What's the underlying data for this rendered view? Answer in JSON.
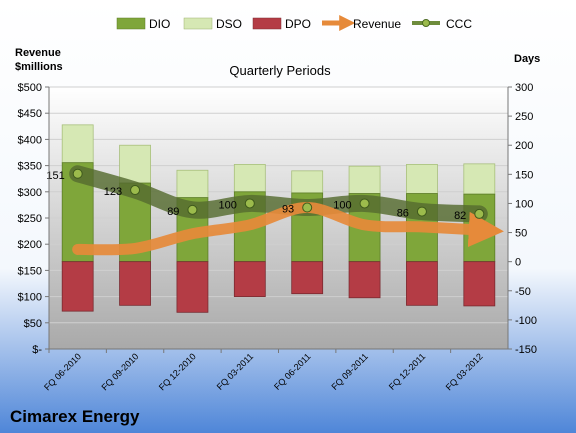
{
  "chart_data": {
    "type": "bar",
    "title": "Quarterly Periods",
    "company": "Cimarex Energy",
    "left_axis_label_line1": "Revenue",
    "left_axis_label_line2": "$millions",
    "right_axis_label": "Days",
    "categories": [
      "FQ 06-2010",
      "FQ 09-2010",
      "FQ 12-2010",
      "FQ 03-2011",
      "FQ 06-2011",
      "FQ 09-2011",
      "FQ 12-2011",
      "FQ 03-2012"
    ],
    "left_ylim": [
      0,
      500
    ],
    "left_ticks": [
      {
        "value": 0,
        "label": "$-"
      },
      {
        "value": 50,
        "label": "$50"
      },
      {
        "value": 100,
        "label": "$100"
      },
      {
        "value": 150,
        "label": "$150"
      },
      {
        "value": 200,
        "label": "$200"
      },
      {
        "value": 250,
        "label": "$250"
      },
      {
        "value": 300,
        "label": "$300"
      },
      {
        "value": 350,
        "label": "$350"
      },
      {
        "value": 400,
        "label": "$400"
      },
      {
        "value": 450,
        "label": "$450"
      },
      {
        "value": 500,
        "label": "$500"
      }
    ],
    "right_ylim": [
      -150,
      300
    ],
    "right_ticks": [
      {
        "value": -150,
        "label": "-150"
      },
      {
        "value": -100,
        "label": "-100"
      },
      {
        "value": -50,
        "label": "-50"
      },
      {
        "value": 0,
        "label": "0"
      },
      {
        "value": 50,
        "label": "50"
      },
      {
        "value": 100,
        "label": "100"
      },
      {
        "value": 150,
        "label": "150"
      },
      {
        "value": 200,
        "label": "200"
      },
      {
        "value": 250,
        "label": "250"
      },
      {
        "value": 300,
        "label": "300"
      }
    ],
    "series": [
      {
        "name": "DIO",
        "axis": "right",
        "values": [
          170,
          135,
          110,
          120,
          118,
          117,
          117,
          116
        ],
        "color": "#7fa63a"
      },
      {
        "name": "DSO",
        "axis": "right",
        "values": [
          65,
          65,
          47,
          47,
          38,
          47,
          50,
          52
        ],
        "color": "#d6e8b4"
      },
      {
        "name": "DPO",
        "axis": "right",
        "values": [
          -85,
          -75,
          -87,
          -60,
          -55,
          -62,
          -75,
          -76
        ],
        "color": "#b43c45"
      },
      {
        "name": "Revenue",
        "axis": "left",
        "values": [
          190,
          192,
          220,
          237,
          270,
          237,
          233,
          227
        ],
        "color": "#e68a3a"
      },
      {
        "name": "CCC",
        "axis": "right",
        "values": [
          151,
          123,
          89,
          100,
          93,
          100,
          86,
          82
        ],
        "color": "#6e8c3c"
      }
    ],
    "ccc_labels": [
      "151",
      "123",
      "89",
      "100",
      "93",
      "100",
      "86",
      "82"
    ],
    "legend_position": "top",
    "grid": true
  }
}
